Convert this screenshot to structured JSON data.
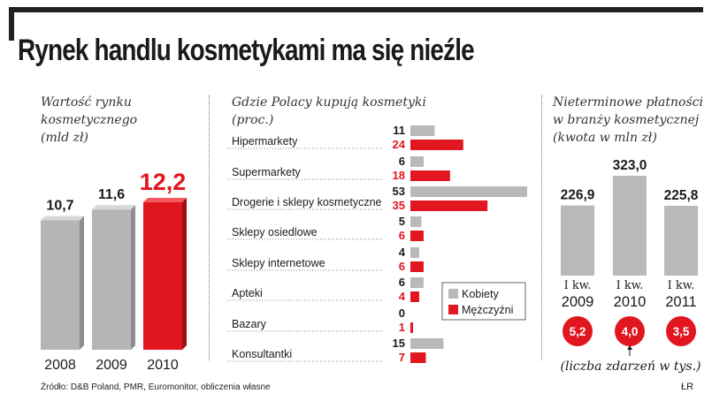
{
  "title": "Rynek handlu kosmetykami ma się nieźle",
  "source": "Źródło: D&B Poland, PMR, Euromonitor, obliczenia własne",
  "credit": "ŁR",
  "colors": {
    "grey": "#b9b9b9",
    "red": "#e2161f",
    "dark": "#1a1a1a"
  },
  "chart_data": [
    {
      "type": "bar",
      "title": "Wartość rynku kosmetycznego (mld zł)",
      "title_lines": [
        "Wartość rynku",
        "kosmetycznego",
        "(mld zł)"
      ],
      "categories": [
        "2008",
        "2009",
        "2010"
      ],
      "values": [
        10.7,
        11.6,
        12.2
      ],
      "value_labels": [
        "10,7",
        "11,6",
        "12,2"
      ],
      "highlight": "2010"
    },
    {
      "type": "bar",
      "orientation": "horizontal",
      "title": "Gdzie Polacy kupują kosmetyki (proc.)",
      "title_lines": [
        "Gdzie Polacy kupują kosmetyki",
        "(proc.)"
      ],
      "categories": [
        "Hipermarkety",
        "Supermarkety",
        "Drogerie i sklepy kosmetyczne",
        "Sklepy osiedlowe",
        "Sklepy internetowe",
        "Apteki",
        "Bazary",
        "Konsultantki"
      ],
      "series": [
        {
          "name": "Kobiety",
          "values": [
            11,
            6,
            53,
            5,
            4,
            6,
            0,
            15
          ]
        },
        {
          "name": "Mężczyźni",
          "values": [
            24,
            18,
            35,
            6,
            6,
            4,
            1,
            7
          ]
        }
      ],
      "legend": [
        "Kobiety",
        "Mężczyźni"
      ]
    },
    {
      "type": "bar",
      "title": "Nieterminowe płatności w branży kosmetycznej (kwota w mln zł)",
      "title_lines": [
        "Nieterminowe płatności",
        "w branży kosmetycznej",
        "(kwota w mln zł)"
      ],
      "categories": [
        [
          "I kw.",
          "2009"
        ],
        [
          "I kw.",
          "2010"
        ],
        [
          "I kw.",
          "2011"
        ]
      ],
      "values": [
        226.9,
        323.0,
        225.8
      ],
      "value_labels": [
        "226,9",
        "323,0",
        "225,8"
      ],
      "events": [
        "5,2",
        "4,0",
        "3,5"
      ],
      "events_note": "(liczba zdarzeń w tys.)"
    }
  ]
}
